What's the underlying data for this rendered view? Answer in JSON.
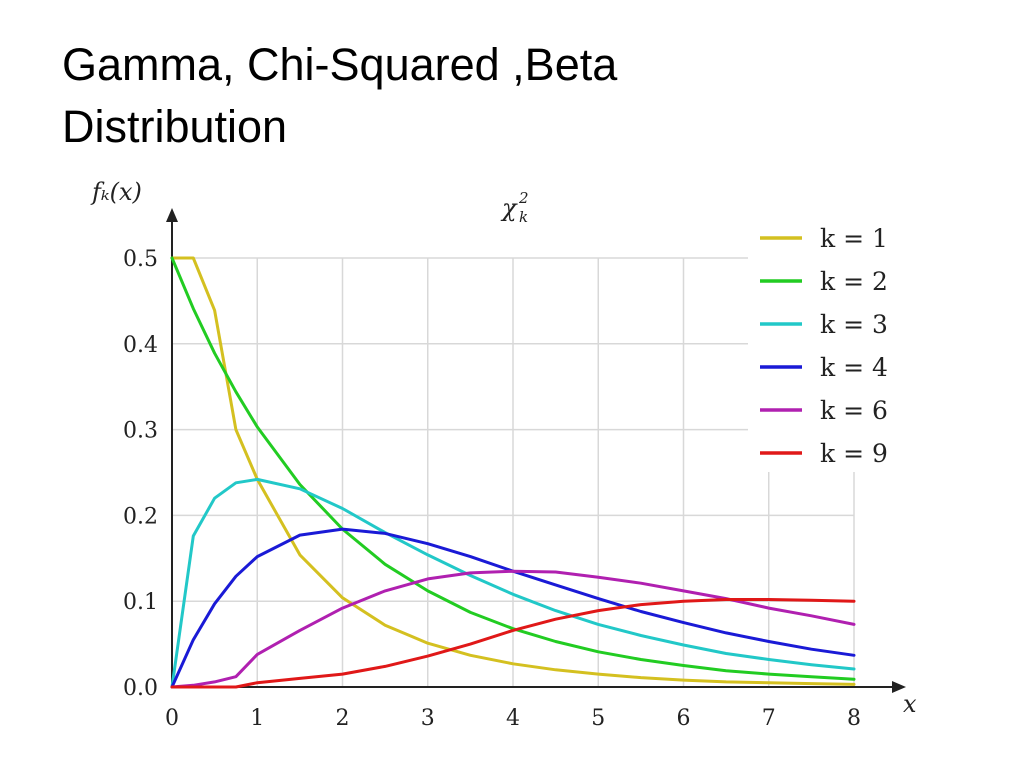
{
  "slide": {
    "title_line1": "Gamma, Chi-Squared ,Beta",
    "title_line2": "Distribution"
  },
  "chart_data": {
    "type": "line",
    "title": "χ²ₖ",
    "title_main": "χ",
    "title_sup": "2",
    "title_sub": "k",
    "ylabel": "fₖ(x)",
    "xlabel": "x",
    "xlim": [
      0,
      8
    ],
    "ylim": [
      0,
      0.5
    ],
    "xticks": [
      0,
      1,
      2,
      3,
      4,
      5,
      6,
      7,
      8
    ],
    "xtick_labels": [
      "0",
      "1",
      "2",
      "3",
      "4",
      "5",
      "6",
      "7",
      "8"
    ],
    "yticks": [
      0,
      0.1,
      0.2,
      0.3,
      0.4,
      0.5
    ],
    "ytick_labels": [
      "0.0",
      "0.1",
      "0.2",
      "0.3",
      "0.4",
      "0.5"
    ],
    "grid": true,
    "legend_position": "top-right",
    "x": [
      0,
      0.25,
      0.5,
      0.75,
      1,
      1.5,
      2,
      2.5,
      3,
      3.5,
      4,
      4.5,
      5,
      5.5,
      6,
      6.5,
      7,
      7.5,
      8
    ],
    "series": [
      {
        "name": "k=1",
        "legend": "k = 1",
        "color": "#d4c020",
        "values": [
          0.5,
          0.5,
          0.439,
          0.3,
          0.242,
          0.154,
          0.104,
          0.072,
          0.051,
          0.037,
          0.027,
          0.02,
          0.015,
          0.011,
          0.008,
          0.006,
          0.005,
          0.004,
          0.003
        ]
      },
      {
        "name": "k=2",
        "legend": "k = 2",
        "color": "#22cc22",
        "values": [
          0.5,
          0.441,
          0.389,
          0.344,
          0.303,
          0.236,
          0.184,
          0.143,
          0.112,
          0.087,
          0.068,
          0.053,
          0.041,
          0.032,
          0.025,
          0.019,
          0.015,
          0.012,
          0.009
        ]
      },
      {
        "name": "k=3",
        "legend": "k = 3",
        "color": "#22c8c8",
        "values": [
          0,
          0.176,
          0.22,
          0.238,
          0.242,
          0.231,
          0.208,
          0.18,
          0.154,
          0.13,
          0.108,
          0.089,
          0.073,
          0.06,
          0.049,
          0.039,
          0.032,
          0.026,
          0.021
        ]
      },
      {
        "name": "k=4",
        "legend": "k = 4",
        "color": "#1a1ad6",
        "values": [
          0,
          0.055,
          0.097,
          0.129,
          0.152,
          0.177,
          0.184,
          0.179,
          0.167,
          0.152,
          0.135,
          0.119,
          0.103,
          0.088,
          0.075,
          0.063,
          0.053,
          0.044,
          0.037
        ]
      },
      {
        "name": "k=6",
        "legend": "k = 6",
        "color": "#b020b0",
        "values": [
          0,
          0.002,
          0.006,
          0.012,
          0.038,
          0.066,
          0.092,
          0.112,
          0.126,
          0.133,
          0.135,
          0.134,
          0.128,
          0.121,
          0.112,
          0.103,
          0.092,
          0.083,
          0.073
        ]
      },
      {
        "name": "k=9",
        "legend": "k = 9",
        "color": "#e01818",
        "values": [
          0,
          0,
          0,
          0,
          0.005,
          0.01,
          0.015,
          0.024,
          0.036,
          0.05,
          0.066,
          0.079,
          0.089,
          0.096,
          0.1,
          0.102,
          0.102,
          0.101,
          0.1
        ]
      }
    ]
  }
}
